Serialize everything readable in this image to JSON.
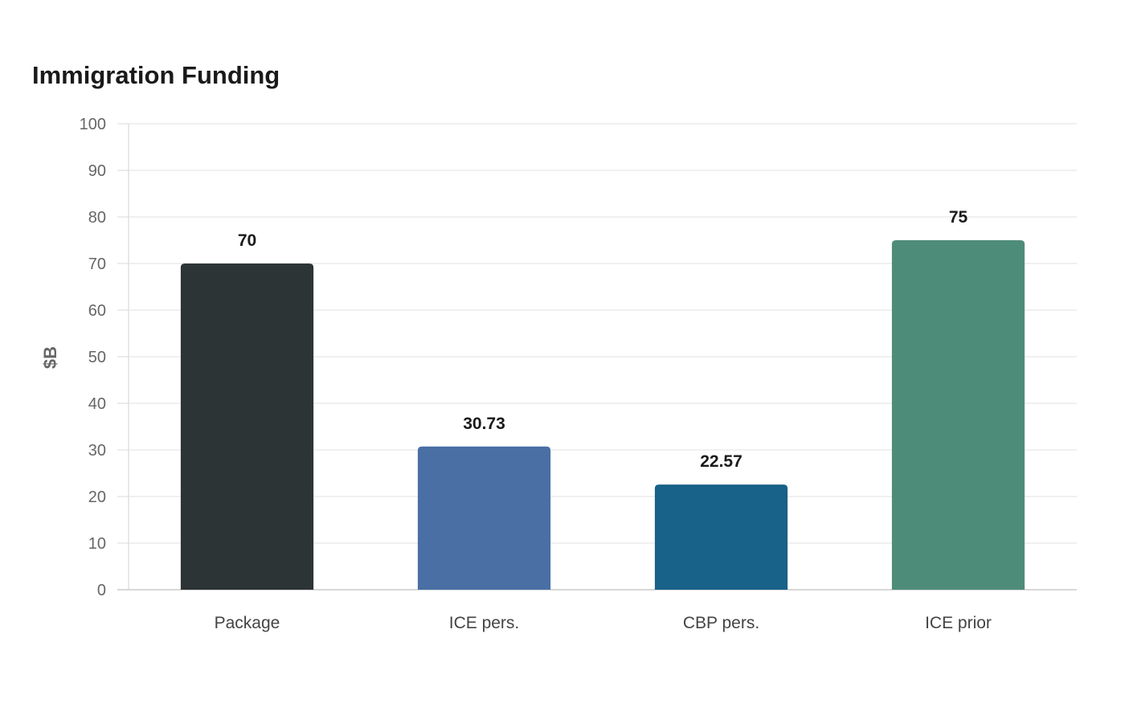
{
  "chart_data": {
    "type": "bar",
    "title": "Immigration Funding",
    "xlabel": "",
    "ylabel": "$B",
    "categories": [
      "Package",
      "ICE pers.",
      "CBP pers.",
      "ICE prior"
    ],
    "values": [
      70,
      30.73,
      22.57,
      75
    ],
    "data_labels": [
      "70",
      "30.73",
      "22.57",
      "75"
    ],
    "colors": [
      "#2d3436",
      "#4a6fa5",
      "#186188",
      "#4e8c7a"
    ],
    "ylim": [
      0,
      100
    ],
    "yticks": [
      0,
      10,
      20,
      30,
      40,
      50,
      60,
      70,
      80,
      90,
      100
    ],
    "grid": true,
    "legend": "none"
  }
}
